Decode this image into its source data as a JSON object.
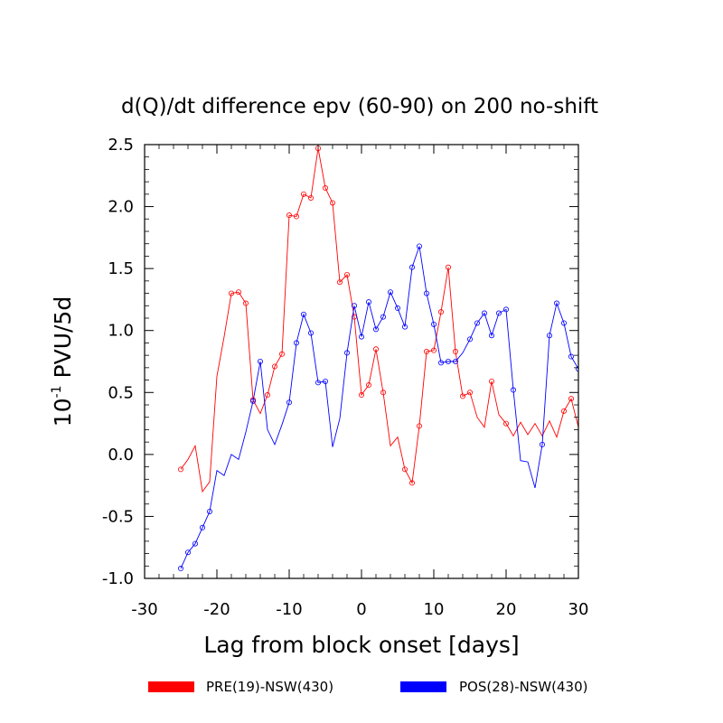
{
  "chart_data": {
    "type": "line",
    "title": "d(Q)/dt  difference epv (60-90) on 200 no-shift",
    "xlabel": "Lag from block onset [days]",
    "ylabel_prefix": "10",
    "ylabel_exponent": "-1",
    "ylabel_suffix": " PVU/5d",
    "xlim": [
      -30,
      30
    ],
    "ylim": [
      -1.0,
      2.5
    ],
    "xticks": [
      -30,
      -20,
      -10,
      0,
      10,
      20,
      30
    ],
    "xtick_labels": [
      "-30",
      "-20",
      "-10",
      "0",
      "10",
      "20",
      "30"
    ],
    "yticks": [
      -1.0,
      -0.5,
      0.0,
      0.5,
      1.0,
      1.5,
      2.0,
      2.5
    ],
    "ytick_labels": [
      "-1.0",
      "-0.5",
      "0.0",
      "0.5",
      "1.0",
      "1.5",
      "2.0",
      "2.5"
    ],
    "legend_position": "bottom",
    "series": [
      {
        "name": "PRE(19)-NSW(430)",
        "color": "#ff0000",
        "x": [
          -25,
          -24,
          -23,
          -22,
          -21,
          -20,
          -19,
          -18,
          -17,
          -16,
          -15,
          -14,
          -13,
          -12,
          -11,
          -10,
          -9,
          -8,
          -7,
          -6,
          -5,
          -4,
          -3,
          -2,
          -1,
          0,
          1,
          2,
          3,
          4,
          5,
          6,
          7,
          8,
          9,
          10,
          11,
          12,
          13,
          14,
          15,
          16,
          17,
          18,
          19,
          20,
          21,
          22,
          23,
          24,
          25,
          26,
          27,
          28,
          29,
          30
        ],
        "y": [
          -0.12,
          -0.04,
          0.07,
          -0.3,
          -0.22,
          0.63,
          0.95,
          1.3,
          1.31,
          1.22,
          0.44,
          0.33,
          0.48,
          0.71,
          0.81,
          1.93,
          1.92,
          2.1,
          2.07,
          2.47,
          2.15,
          2.03,
          1.39,
          1.45,
          1.11,
          0.48,
          0.56,
          0.85,
          0.5,
          0.07,
          0.14,
          -0.12,
          -0.23,
          0.23,
          0.83,
          0.84,
          1.15,
          1.51,
          0.83,
          0.47,
          0.5,
          0.3,
          0.22,
          0.59,
          0.32,
          0.25,
          0.15,
          0.26,
          0.16,
          0.25,
          0.15,
          0.27,
          0.14,
          0.35,
          0.45,
          0.22
        ],
        "markers": [
          -25,
          -18,
          -17,
          -16,
          -15,
          -13,
          -12,
          -11,
          -10,
          -9,
          -8,
          -7,
          -6,
          -5,
          -4,
          -3,
          -2,
          -1,
          0,
          1,
          2,
          3,
          6,
          7,
          8,
          9,
          10,
          11,
          12,
          13,
          14,
          15,
          18,
          20,
          28,
          29
        ]
      },
      {
        "name": "POS(28)-NSW(430)",
        "color": "#0000ff",
        "x": [
          -25,
          -24,
          -23,
          -22,
          -21,
          -20,
          -19,
          -18,
          -17,
          -16,
          -15,
          -14,
          -13,
          -12,
          -11,
          -10,
          -9,
          -8,
          -7,
          -6,
          -5,
          -4,
          -3,
          -2,
          -1,
          0,
          1,
          2,
          3,
          4,
          5,
          6,
          7,
          8,
          9,
          10,
          11,
          12,
          13,
          14,
          15,
          16,
          17,
          18,
          19,
          20,
          21,
          22,
          23,
          24,
          25,
          26,
          27,
          28,
          29,
          30
        ],
        "y": [
          -0.92,
          -0.79,
          -0.72,
          -0.59,
          -0.46,
          -0.13,
          -0.17,
          0.0,
          -0.04,
          0.18,
          0.43,
          0.75,
          0.2,
          0.08,
          0.24,
          0.42,
          0.9,
          1.13,
          0.98,
          0.58,
          0.59,
          0.06,
          0.29,
          0.82,
          1.2,
          0.95,
          1.23,
          1.01,
          1.11,
          1.31,
          1.18,
          1.03,
          1.51,
          1.68,
          1.3,
          1.05,
          0.74,
          0.75,
          0.75,
          0.82,
          0.93,
          1.06,
          1.14,
          0.96,
          1.14,
          1.17,
          0.52,
          -0.05,
          -0.06,
          -0.27,
          0.08,
          0.96,
          1.22,
          1.06,
          0.79,
          0.69
        ],
        "markers": [
          -25,
          -24,
          -23,
          -22,
          -21,
          -15,
          -14,
          -10,
          -9,
          -8,
          -7,
          -6,
          -5,
          -2,
          -1,
          0,
          1,
          2,
          3,
          4,
          5,
          6,
          7,
          8,
          9,
          10,
          11,
          12,
          13,
          15,
          16,
          17,
          18,
          19,
          20,
          21,
          25,
          26,
          27,
          28,
          29,
          30
        ]
      }
    ]
  }
}
